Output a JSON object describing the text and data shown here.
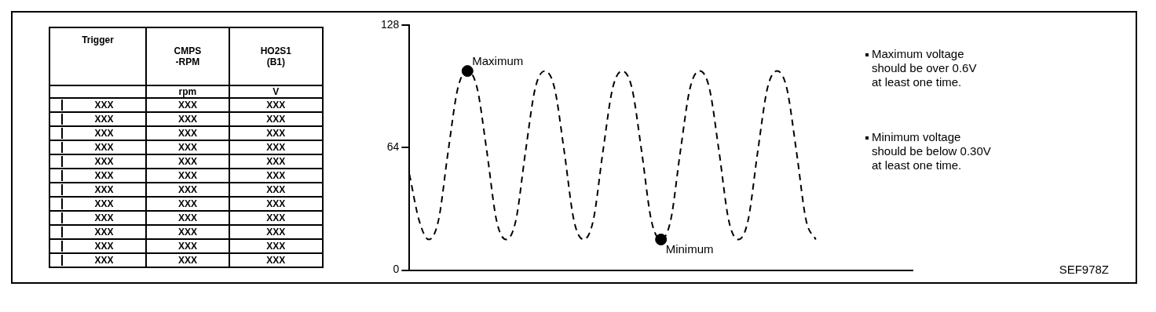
{
  "chart_data": [
    {
      "type": "other",
      "categories": [
        "Trigger",
        "CMPS\n-RPM",
        "HO2S1\n(B1)"
      ],
      "cell_labels": [
        [
          null,
          "rpm",
          "V"
        ],
        [
          "XXX",
          "XXX",
          "XXX"
        ],
        [
          "XXX",
          "XXX",
          "XXX"
        ],
        [
          "XXX",
          "XXX",
          "XXX"
        ],
        [
          "XXX",
          "XXX",
          "XXX"
        ],
        [
          "XXX",
          "XXX",
          "XXX"
        ],
        [
          "XXX",
          "XXX",
          "XXX"
        ],
        [
          "XXX",
          "XXX",
          "XXX"
        ],
        [
          "XXX",
          "XXX",
          "XXX"
        ],
        [
          "XXX",
          "XXX",
          "XXX"
        ],
        [
          "XXX",
          "XXX",
          "XXX"
        ],
        [
          "XXX",
          "XXX",
          "XXX"
        ],
        [
          "XXX",
          "XXX",
          "XXX"
        ]
      ]
    },
    {
      "type": "line",
      "categories": [
        null,
        null,
        null,
        null,
        null,
        null,
        null,
        null,
        null,
        null,
        null,
        null,
        null,
        null,
        null,
        null,
        null,
        null,
        null,
        null,
        null,
        null,
        null,
        null,
        null,
        null,
        null,
        null,
        null,
        null,
        null,
        null,
        null,
        null,
        null,
        null,
        null,
        null,
        null,
        null,
        null,
        null,
        null,
        null,
        null,
        null,
        null,
        null,
        null,
        null,
        null,
        null,
        null
      ],
      "series": [
        {
          "color": "#000000",
          "line_style": "dashed",
          "marker": "none",
          "values": [
            50,
            26,
            16,
            26,
            62,
            95,
            104,
            95,
            62,
            26,
            16,
            26,
            62,
            95,
            104,
            95,
            62,
            26,
            16,
            26,
            62,
            95,
            104,
            95,
            62,
            26,
            16,
            26,
            62,
            95,
            104,
            95,
            62,
            26,
            16,
            26,
            62,
            95,
            104,
            95,
            62,
            26,
            16,
            null,
            null,
            null,
            null,
            null,
            null,
            null,
            null,
            null,
            null
          ]
        },
        {
          "type": "scatter",
          "color": "#000000",
          "marker": "circle",
          "values": [
            null,
            null,
            null,
            null,
            null,
            null,
            104,
            null,
            null,
            null,
            null,
            null,
            null,
            null,
            null,
            null,
            null,
            null,
            null,
            null,
            null,
            null,
            null,
            null,
            null,
            null,
            16,
            null,
            null,
            null,
            null,
            null,
            null,
            null,
            null,
            null,
            null,
            null,
            null,
            null,
            null,
            null,
            null,
            null,
            null,
            null,
            null,
            null,
            null,
            null,
            null,
            null,
            null
          ]
        }
      ],
      "ylim": [
        0,
        128
      ],
      "yticks": [
        0,
        64,
        128
      ],
      "grid": false,
      "legend": false,
      "annotations": [
        "Maximum",
        "Minimum",
        "Maximum voltage\nshould be over 0.6V\nat least one time.",
        "Minimum voltage\nshould be below 0.30V\nat least one time.",
        "SEF978Z"
      ]
    }
  ]
}
